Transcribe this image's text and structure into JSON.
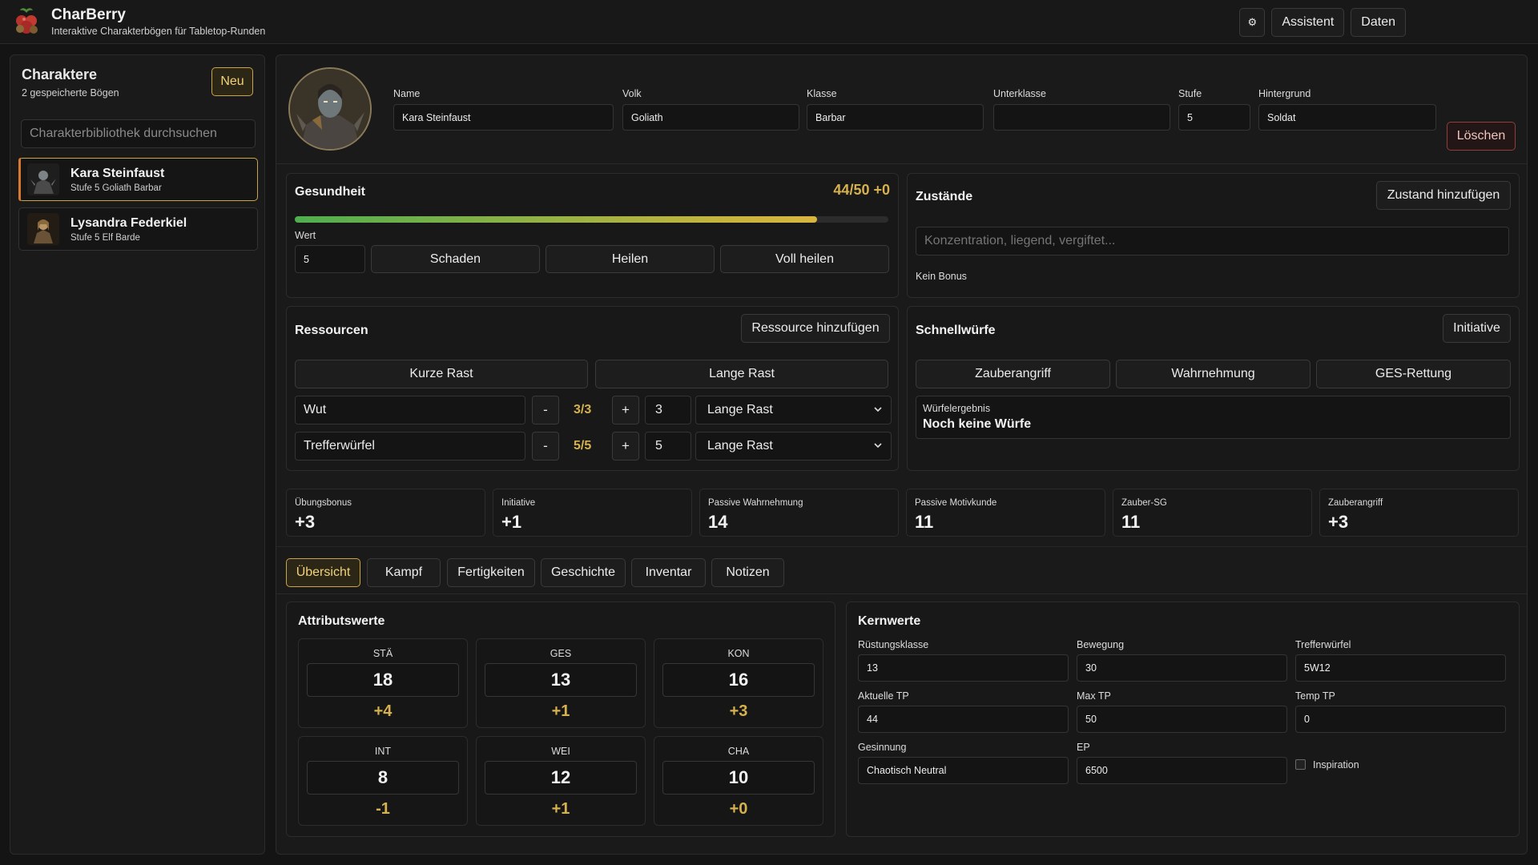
{
  "app": {
    "title": "CharBerry",
    "subtitle": "Interaktive Charakterbögen für Tabletop-Runden",
    "actions": {
      "settings_icon": "gear-icon",
      "assistant": "Assistent",
      "data": "Daten"
    }
  },
  "sidebar": {
    "title": "Charaktere",
    "subtitle": "2 gespeicherte Bögen",
    "new_label": "Neu",
    "search_placeholder": "Charakterbibliothek durchsuchen",
    "characters": [
      {
        "name": "Kara Steinfaust",
        "meta": "Stufe 5 Goliath Barbar",
        "active": true
      },
      {
        "name": "Lysandra Federkiel",
        "meta": "Stufe 5 Elf Barde",
        "active": false
      }
    ]
  },
  "character": {
    "labels": {
      "name": "Name",
      "race": "Volk",
      "class": "Klasse",
      "subclass": "Unterklasse",
      "level": "Stufe",
      "background": "Hintergrund"
    },
    "values": {
      "name": "Kara Steinfaust",
      "race": "Goliath",
      "class": "Barbar",
      "subclass": "",
      "level": "5",
      "background": "Soldat"
    },
    "delete_label": "Löschen"
  },
  "health": {
    "title": "Gesundheit",
    "display": "44/50 +0",
    "current": 44,
    "max": 50,
    "value_label": "Wert",
    "value": "5",
    "damage": "Schaden",
    "heal": "Heilen",
    "full_heal": "Voll heilen"
  },
  "conditions": {
    "title": "Zustände",
    "add_label": "Zustand hinzufügen",
    "placeholder": "Konzentration, liegend, vergiftet...",
    "bonus_text": "Kein Bonus"
  },
  "resources": {
    "title": "Ressourcen",
    "add_label": "Ressource hinzufügen",
    "short_rest": "Kurze Rast",
    "long_rest": "Lange Rast",
    "minus": "-",
    "plus": "+",
    "items": [
      {
        "name": "Wut",
        "count": "3/3",
        "max": "3",
        "reset": "Lange Rast"
      },
      {
        "name": "Trefferwürfel",
        "count": "5/5",
        "max": "5",
        "reset": "Lange Rast"
      }
    ]
  },
  "quick_rolls": {
    "title": "Schnellwürfe",
    "initiative_label": "Initiative",
    "buttons": [
      "Zauberangriff",
      "Wahrnehmung",
      "GES-Rettung"
    ],
    "result_label": "Würfelergebnis",
    "result_text": "Noch keine Würfe"
  },
  "stats": [
    {
      "label": "Übungsbonus",
      "value": "+3"
    },
    {
      "label": "Initiative",
      "value": "+1"
    },
    {
      "label": "Passive Wahrnehmung",
      "value": "14"
    },
    {
      "label": "Passive Motivkunde",
      "value": "11"
    },
    {
      "label": "Zauber-SG",
      "value": "11"
    },
    {
      "label": "Zauberangriff",
      "value": "+3"
    }
  ],
  "tabs": [
    "Übersicht",
    "Kampf",
    "Fertigkeiten",
    "Geschichte",
    "Inventar",
    "Notizen"
  ],
  "attributes": {
    "title": "Attributswerte",
    "items": [
      {
        "name": "STÄ",
        "score": "18",
        "mod": "+4"
      },
      {
        "name": "GES",
        "score": "13",
        "mod": "+1"
      },
      {
        "name": "KON",
        "score": "16",
        "mod": "+3"
      },
      {
        "name": "INT",
        "score": "8",
        "mod": "-1"
      },
      {
        "name": "WEI",
        "score": "12",
        "mod": "+1"
      },
      {
        "name": "CHA",
        "score": "10",
        "mod": "+0"
      }
    ]
  },
  "core": {
    "title": "Kernwerte",
    "fields": [
      {
        "label": "Rüstungsklasse",
        "value": "13"
      },
      {
        "label": "Bewegung",
        "value": "30"
      },
      {
        "label": "Trefferwürfel",
        "value": "5W12"
      },
      {
        "label": "Aktuelle TP",
        "value": "44"
      },
      {
        "label": "Max TP",
        "value": "50"
      },
      {
        "label": "Temp TP",
        "value": "0"
      },
      {
        "label": "Gesinnung",
        "value": "Chaotisch Neutral"
      },
      {
        "label": "EP",
        "value": "6500"
      }
    ],
    "inspiration_label": "Inspiration",
    "inspiration_checked": false
  },
  "colors": {
    "accent_gold": "#d6b14f",
    "danger": "#8c4038",
    "hp_green": "#4fae4f"
  }
}
